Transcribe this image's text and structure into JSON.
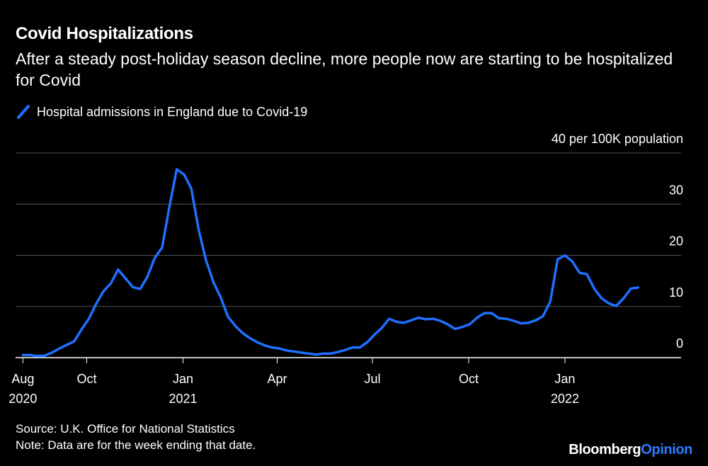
{
  "title": "Covid Hospitalizations",
  "subtitle": "After a steady post-holiday season decline, more people now are starting to be hospitalized for Covid",
  "footer": {
    "source": "Source: U.K. Office for National Statistics",
    "note": "Note: Data are for the week ending that date."
  },
  "brand": {
    "part1": "Bloomberg",
    "part2": "Opinion"
  },
  "icons": {
    "legend_swatch": "diagonal-line-icon"
  },
  "colors": {
    "background": "#000000",
    "series": "#1f6fff",
    "grid": "#555555",
    "axis": "#ffffff"
  },
  "chart_data": {
    "type": "line",
    "y_unit_label": "40 per 100K population",
    "ylim": [
      0,
      40
    ],
    "y_ticks": [
      0,
      10,
      20,
      30
    ],
    "grid": true,
    "legend_position": "top-left",
    "x_tick_labels": [
      {
        "date": "2020-08-01",
        "label": "Aug",
        "year": "2020"
      },
      {
        "date": "2020-10-01",
        "label": "Oct",
        "year": ""
      },
      {
        "date": "2021-01-01",
        "label": "Jan",
        "year": "2021"
      },
      {
        "date": "2021-04-01",
        "label": "Apr",
        "year": ""
      },
      {
        "date": "2021-07-01",
        "label": "Jul",
        "year": ""
      },
      {
        "date": "2021-10-01",
        "label": "Oct",
        "year": ""
      },
      {
        "date": "2022-01-01",
        "label": "Jan",
        "year": "2022"
      }
    ],
    "x_domain": [
      "2020-07-25",
      "2022-04-22"
    ],
    "series": [
      {
        "name": "Hospital admissions in England due to Covid-19",
        "color": "#1f6fff",
        "x": [
          "2020-08-01",
          "2020-08-08",
          "2020-08-15",
          "2020-08-22",
          "2020-08-29",
          "2020-09-05",
          "2020-09-12",
          "2020-09-19",
          "2020-09-26",
          "2020-10-03",
          "2020-10-10",
          "2020-10-17",
          "2020-10-24",
          "2020-10-31",
          "2020-11-07",
          "2020-11-14",
          "2020-11-21",
          "2020-11-28",
          "2020-12-05",
          "2020-12-12",
          "2020-12-19",
          "2020-12-26",
          "2021-01-02",
          "2021-01-09",
          "2021-01-16",
          "2021-01-23",
          "2021-01-30",
          "2021-02-06",
          "2021-02-13",
          "2021-02-20",
          "2021-02-27",
          "2021-03-06",
          "2021-03-13",
          "2021-03-20",
          "2021-03-27",
          "2021-04-03",
          "2021-04-10",
          "2021-04-17",
          "2021-04-24",
          "2021-05-01",
          "2021-05-08",
          "2021-05-15",
          "2021-05-22",
          "2021-05-29",
          "2021-06-05",
          "2021-06-12",
          "2021-06-19",
          "2021-06-26",
          "2021-07-03",
          "2021-07-10",
          "2021-07-17",
          "2021-07-24",
          "2021-07-31",
          "2021-08-07",
          "2021-08-14",
          "2021-08-21",
          "2021-08-28",
          "2021-09-04",
          "2021-09-11",
          "2021-09-18",
          "2021-09-25",
          "2021-10-02",
          "2021-10-09",
          "2021-10-16",
          "2021-10-23",
          "2021-10-30",
          "2021-11-06",
          "2021-11-13",
          "2021-11-20",
          "2021-11-27",
          "2021-12-04",
          "2021-12-11",
          "2021-12-18",
          "2021-12-25",
          "2022-01-01",
          "2022-01-08",
          "2022-01-15",
          "2022-01-22",
          "2022-01-29",
          "2022-02-05",
          "2022-02-12",
          "2022-02-19",
          "2022-02-26",
          "2022-03-05",
          "2022-03-12"
        ],
        "values": [
          0.5,
          0.5,
          0.3,
          0.4,
          1.0,
          1.8,
          2.5,
          3.2,
          5.5,
          7.6,
          10.5,
          13.0,
          14.5,
          17.2,
          15.5,
          13.8,
          13.4,
          15.8,
          19.5,
          21.5,
          29.5,
          36.8,
          35.8,
          33.0,
          25.0,
          19.0,
          14.8,
          11.8,
          8.0,
          6.2,
          4.8,
          3.8,
          3.0,
          2.4,
          2.0,
          1.8,
          1.4,
          1.2,
          1.0,
          0.8,
          0.6,
          0.8,
          0.8,
          1.1,
          1.5,
          2.0,
          2.0,
          3.0,
          4.5,
          5.8,
          7.6,
          7.0,
          6.8,
          7.3,
          7.8,
          7.5,
          7.6,
          7.2,
          6.5,
          5.6,
          6.0,
          6.5,
          7.8,
          8.7,
          8.7,
          7.7,
          7.6,
          7.2,
          6.7,
          6.8,
          7.3,
          8.1,
          11.0,
          19.2,
          20.0,
          18.8,
          16.6,
          16.3,
          13.5,
          11.6,
          10.6,
          10.1,
          11.6,
          13.5,
          13.7
        ]
      }
    ]
  }
}
